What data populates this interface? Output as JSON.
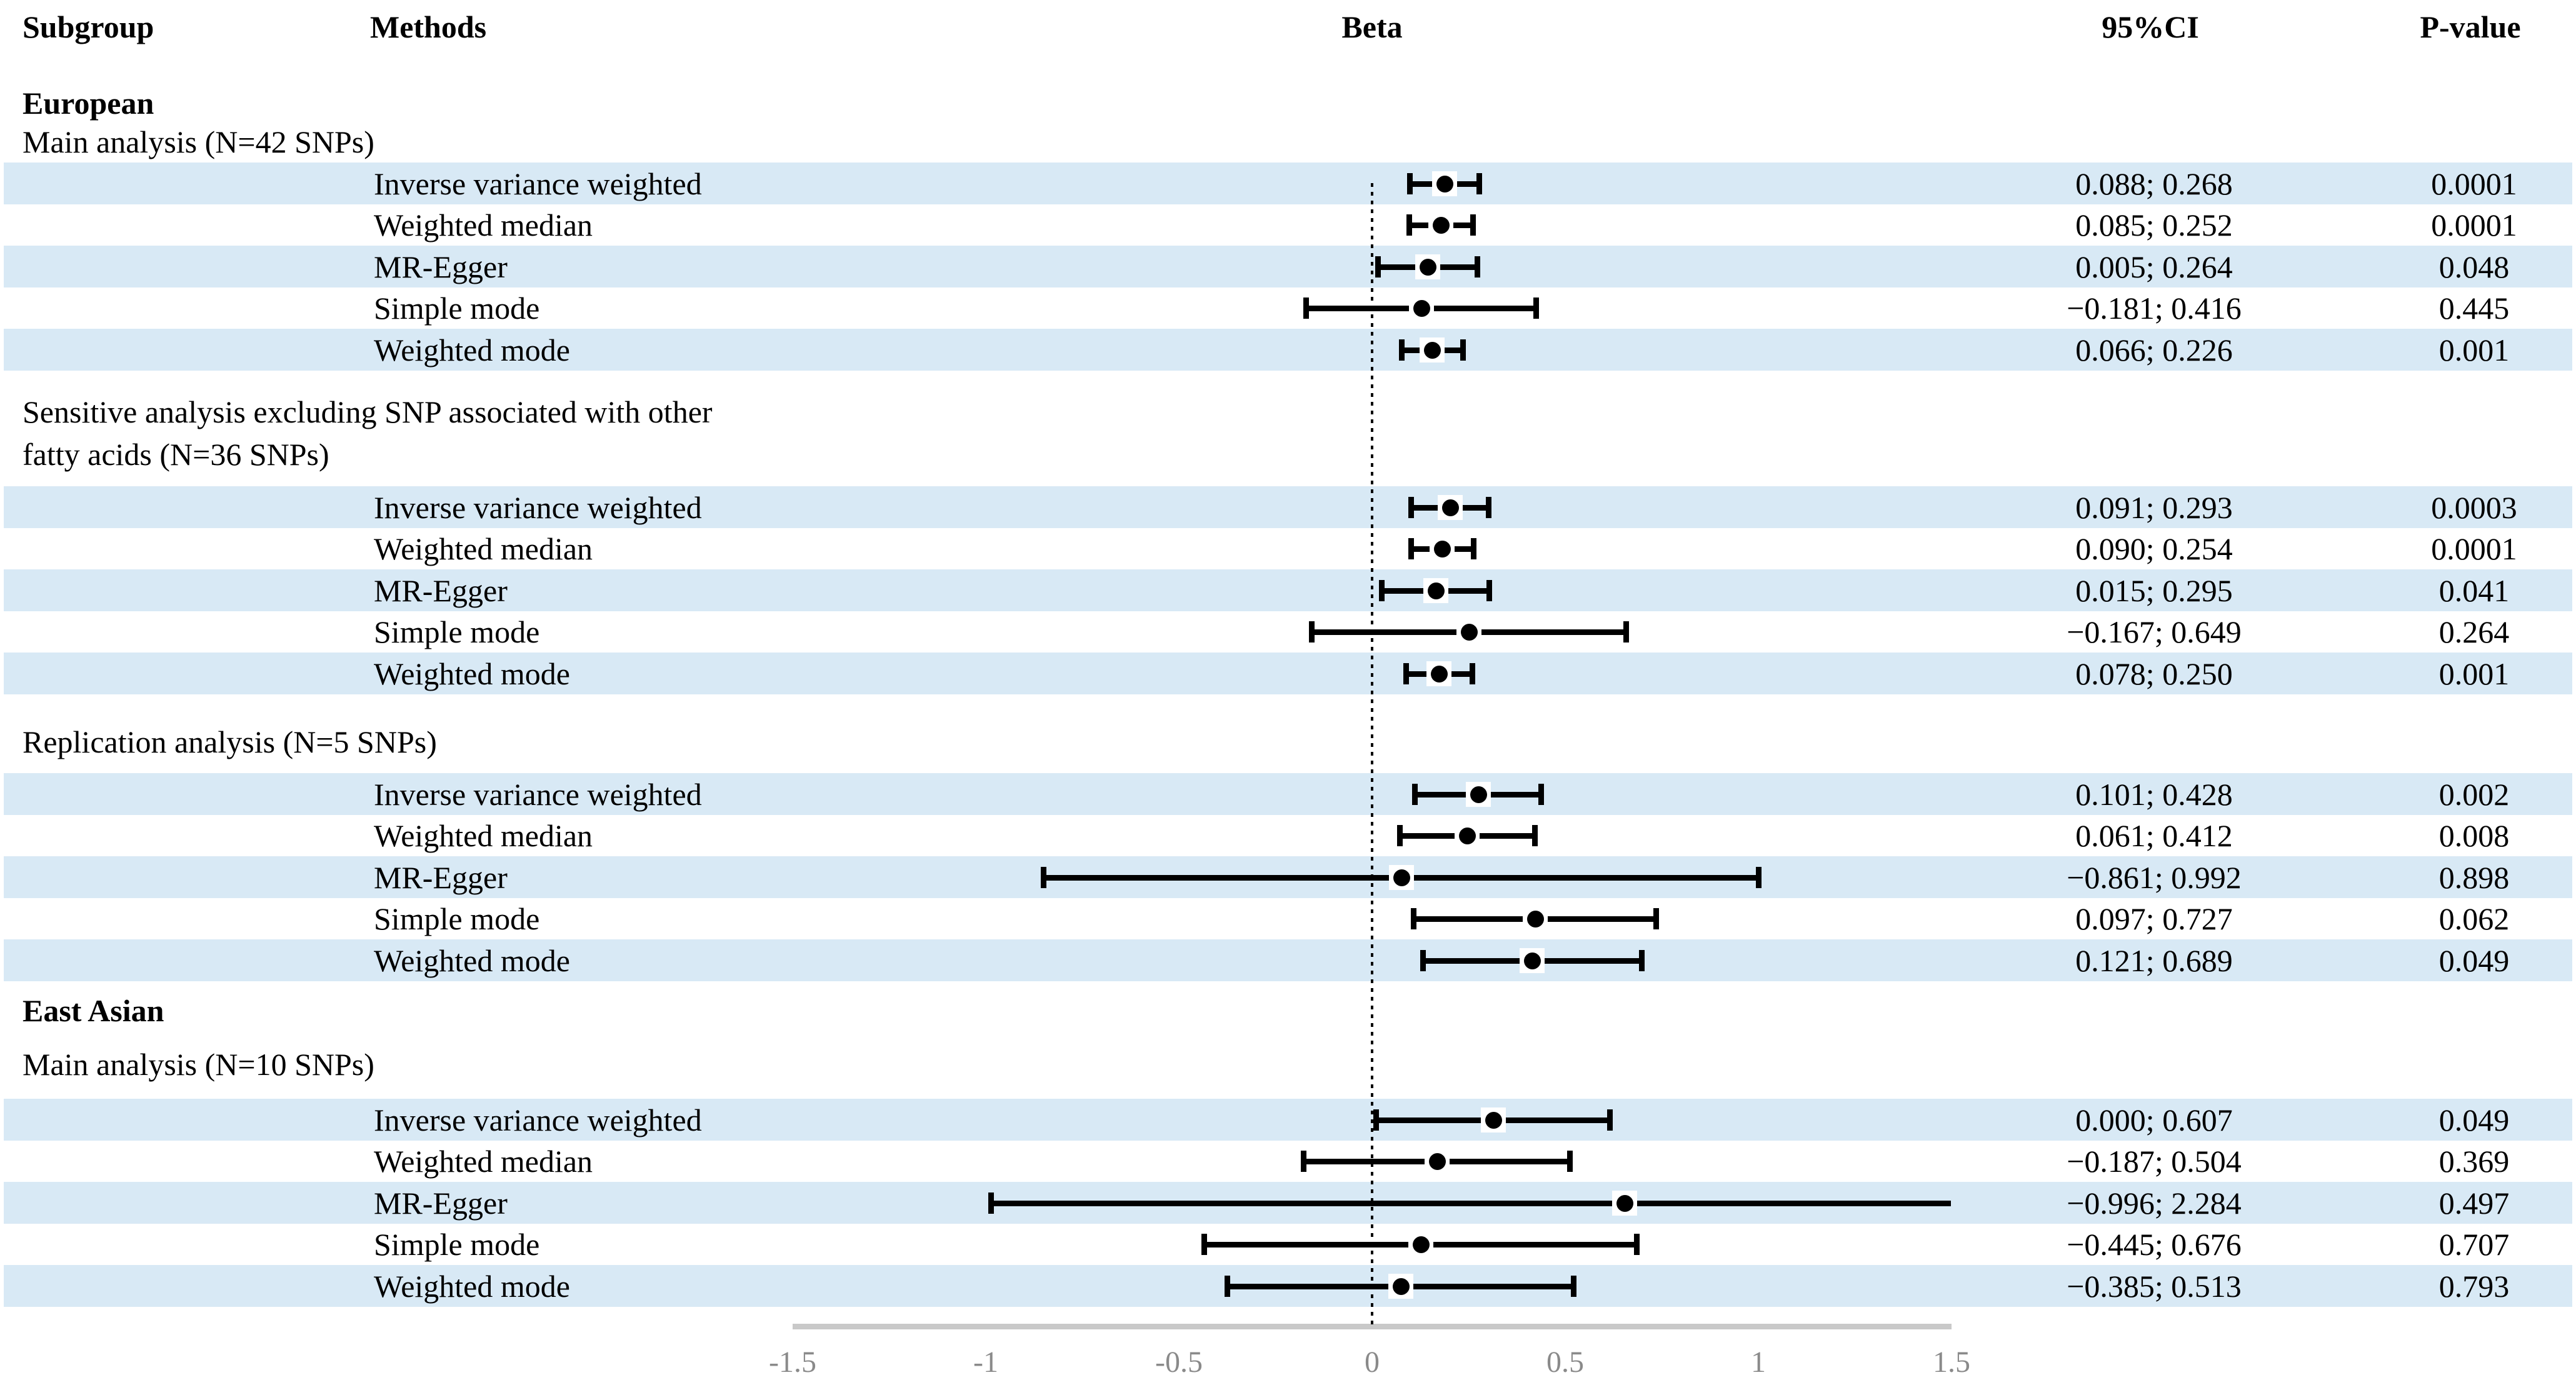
{
  "header": {
    "subgroup": "Subgroup",
    "methods": "Methods",
    "beta": "Beta",
    "ci": "95%CI",
    "pvalue": "P-value"
  },
  "colors": {
    "stripe": "#d8e9f5",
    "axis_line": "#c9c9c9",
    "tick_label": "#8a8a8a",
    "marker": "#000000",
    "reference_line": "#000000"
  },
  "chart_data": {
    "type": "scatter",
    "subtype": "forest-plot",
    "title": "",
    "xlabel": "Beta",
    "xlim": [
      -1.5,
      1.5
    ],
    "x_tick_values": [
      -1.5,
      -1,
      -0.5,
      0,
      0.5,
      1,
      1.5
    ],
    "x_tick_labels": [
      "-1.5",
      "-1",
      "-0.5",
      "0",
      "0.5",
      "1",
      "1.5"
    ],
    "reference_line_x": 0,
    "grid": false,
    "sections": [
      {
        "kind": "subgroup",
        "lines": [
          "European"
        ],
        "rows": []
      },
      {
        "kind": "analysis",
        "lines": [
          "Main analysis (N=42 SNPs)"
        ],
        "rows": [
          {
            "method": "Inverse variance weighted",
            "beta": 0.178,
            "ci_low": 0.088,
            "ci_high": 0.268,
            "ci_text": "0.088; 0.268",
            "p": "0.0001"
          },
          {
            "method": "Weighted median",
            "beta": 0.169,
            "ci_low": 0.085,
            "ci_high": 0.252,
            "ci_text": "0.085; 0.252",
            "p": "0.0001"
          },
          {
            "method": "MR-Egger",
            "beta": 0.135,
            "ci_low": 0.005,
            "ci_high": 0.264,
            "ci_text": "0.005; 0.264",
            "p": "0.048"
          },
          {
            "method": "Simple mode",
            "beta": 0.118,
            "ci_low": -0.181,
            "ci_high": 0.416,
            "ci_text": "−0.181; 0.416",
            "p": "0.445"
          },
          {
            "method": "Weighted mode",
            "beta": 0.146,
            "ci_low": 0.066,
            "ci_high": 0.226,
            "ci_text": "0.066; 0.226",
            "p": "0.001"
          }
        ]
      },
      {
        "kind": "analysis",
        "lines": [
          "Sensitive analysis excluding SNP associated with other",
          "fatty acids (N=36 SNPs)"
        ],
        "rows": [
          {
            "method": "Inverse variance weighted",
            "beta": 0.192,
            "ci_low": 0.091,
            "ci_high": 0.293,
            "ci_text": "0.091; 0.293",
            "p": "0.0003"
          },
          {
            "method": "Weighted median",
            "beta": 0.172,
            "ci_low": 0.09,
            "ci_high": 0.254,
            "ci_text": "0.090; 0.254",
            "p": "0.0001"
          },
          {
            "method": "MR-Egger",
            "beta": 0.155,
            "ci_low": 0.015,
            "ci_high": 0.295,
            "ci_text": "0.015; 0.295",
            "p": "0.041"
          },
          {
            "method": "Simple mode",
            "beta": 0.241,
            "ci_low": -0.167,
            "ci_high": 0.649,
            "ci_text": "−0.167; 0.649",
            "p": "0.264"
          },
          {
            "method": "Weighted mode",
            "beta": 0.164,
            "ci_low": 0.078,
            "ci_high": 0.25,
            "ci_text": "0.078; 0.250",
            "p": "0.001"
          }
        ]
      },
      {
        "kind": "analysis",
        "lines": [
          "Replication analysis (N=5 SNPs)"
        ],
        "rows": [
          {
            "method": "Inverse variance weighted",
            "beta": 0.265,
            "ci_low": 0.101,
            "ci_high": 0.428,
            "ci_text": "0.101; 0.428",
            "p": "0.002"
          },
          {
            "method": "Weighted median",
            "beta": 0.237,
            "ci_low": 0.061,
            "ci_high": 0.412,
            "ci_text": "0.061; 0.412",
            "p": "0.008"
          },
          {
            "method": "MR-Egger",
            "beta": 0.066,
            "ci_low": -0.861,
            "ci_high": 0.992,
            "ci_text": "−0.861; 0.992",
            "p": "0.898"
          },
          {
            "method": "Simple mode",
            "beta": 0.412,
            "ci_low": 0.097,
            "ci_high": 0.727,
            "ci_text": "0.097; 0.727",
            "p": "0.062"
          },
          {
            "method": "Weighted mode",
            "beta": 0.405,
            "ci_low": 0.121,
            "ci_high": 0.689,
            "ci_text": "0.121; 0.689",
            "p": "0.049"
          }
        ]
      },
      {
        "kind": "subgroup",
        "lines": [
          "East Asian"
        ],
        "rows": []
      },
      {
        "kind": "analysis",
        "lines": [
          "Main analysis (N=10 SNPs)"
        ],
        "rows": [
          {
            "method": "Inverse variance weighted",
            "beta": 0.304,
            "ci_low": 0.0,
            "ci_high": 0.607,
            "ci_text": "0.000; 0.607",
            "p": "0.049"
          },
          {
            "method": "Weighted median",
            "beta": 0.159,
            "ci_low": -0.187,
            "ci_high": 0.504,
            "ci_text": "−0.187; 0.504",
            "p": "0.369"
          },
          {
            "method": "MR-Egger",
            "beta": 0.644,
            "ci_low": -0.996,
            "ci_high": 2.284,
            "ci_text": "−0.996; 2.284",
            "p": "0.497"
          },
          {
            "method": "Simple mode",
            "beta": 0.116,
            "ci_low": -0.445,
            "ci_high": 0.676,
            "ci_text": "−0.445; 0.676",
            "p": "0.707"
          },
          {
            "method": "Weighted mode",
            "beta": 0.064,
            "ci_low": -0.385,
            "ci_high": 0.513,
            "ci_text": "−0.385; 0.513",
            "p": "0.793"
          }
        ]
      }
    ]
  }
}
